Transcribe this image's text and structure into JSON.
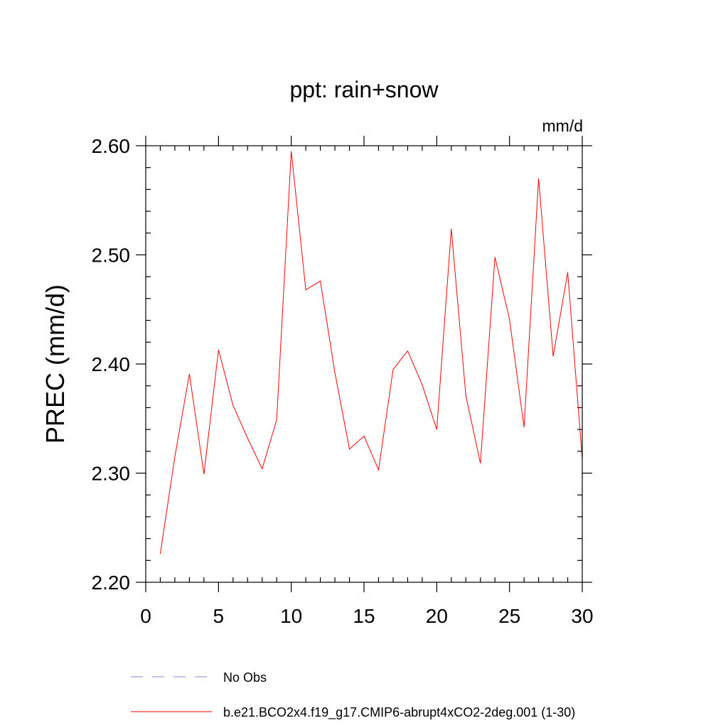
{
  "chart_data": {
    "type": "line",
    "title": "ppt: rain+snow",
    "units": "mm/d",
    "ylabel": "PREC  (mm/d)",
    "xlabel": "",
    "xlim": [
      0,
      30
    ],
    "ylim": [
      2.2,
      2.6
    ],
    "xticks": [
      0,
      5,
      10,
      15,
      20,
      25,
      30
    ],
    "xtick_labels": [
      "0",
      "5",
      "10",
      "15",
      "20",
      "25",
      "30"
    ],
    "yticks": [
      2.2,
      2.3,
      2.4,
      2.5,
      2.6
    ],
    "ytick_labels": [
      "2.20",
      "2.30",
      "2.40",
      "2.50",
      "2.60"
    ],
    "grid": false,
    "legend_position": "bottom",
    "x": [
      1,
      2,
      3,
      4,
      5,
      6,
      7,
      8,
      9,
      10,
      11,
      12,
      13,
      14,
      15,
      16,
      17,
      18,
      19,
      20,
      21,
      22,
      23,
      24,
      25,
      26,
      27,
      28,
      29,
      30
    ],
    "series": [
      {
        "name": "b.e21.BCO2x4.f19_g17.CMIP6-abrupt4xCO2-2deg.001 (1-30)",
        "color": "#ff0000",
        "style": "solid",
        "values": [
          2.226,
          2.315,
          2.391,
          2.299,
          2.413,
          2.362,
          2.332,
          2.304,
          2.349,
          2.595,
          2.468,
          2.476,
          2.392,
          2.322,
          2.334,
          2.303,
          2.395,
          2.412,
          2.381,
          2.34,
          2.524,
          2.371,
          2.309,
          2.498,
          2.441,
          2.342,
          2.57,
          2.407,
          2.484,
          2.313
        ]
      }
    ],
    "legend": [
      {
        "label": "No Obs",
        "color": "#8a8ad8",
        "style": "dashed"
      },
      {
        "label": "b.e21.BCO2x4.f19_g17.CMIP6-abrupt4xCO2-2deg.001 (1-30)",
        "color": "#ff0000",
        "style": "solid"
      }
    ]
  }
}
